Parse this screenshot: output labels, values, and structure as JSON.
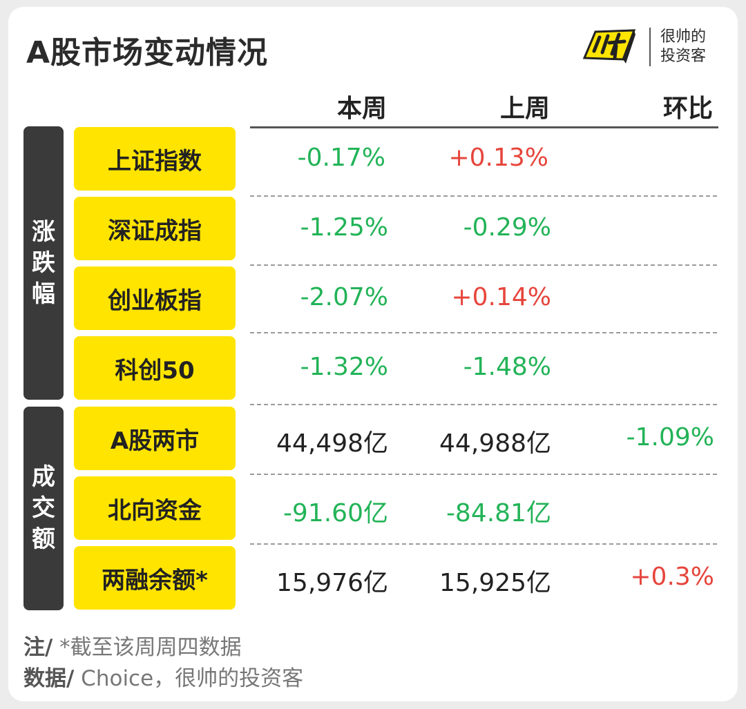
{
  "title": "A股市场变动情况",
  "brand": {
    "logo_text": "帅",
    "line1": "很帅的",
    "line2": "投资客"
  },
  "columns": {
    "this_week": "本周",
    "last_week": "上周",
    "change": "环比"
  },
  "groups": {
    "change_pct": "涨跌幅",
    "volume": "成交额"
  },
  "rows": [
    {
      "label": "上证指数",
      "this_week": "-0.17%",
      "last_week": "+0.13%",
      "change": ""
    },
    {
      "label": "深证成指",
      "this_week": "-1.25%",
      "last_week": "-0.29%",
      "change": ""
    },
    {
      "label": "创业板指",
      "this_week": "-2.07%",
      "last_week": "+0.14%",
      "change": ""
    },
    {
      "label": "科创50",
      "this_week": "-1.32%",
      "last_week": "-1.48%",
      "change": ""
    },
    {
      "label": "A股两市",
      "this_week": "44,498亿",
      "last_week": "44,988亿",
      "change": "-1.09%"
    },
    {
      "label": "北向资金",
      "this_week": "-91.60亿",
      "last_week": "-84.81亿",
      "change": ""
    },
    {
      "label": "两融余额*",
      "this_week": "15,976亿",
      "last_week": "15,925亿",
      "change": "+0.3%"
    }
  ],
  "notes": {
    "note_label": "注/",
    "note_text": " *截至该周周四数据",
    "source_label": "数据/",
    "source_text": " Choice，很帅的投资客"
  },
  "colors": {
    "up": "#e6453c",
    "down": "#22b357",
    "label_bg": "#ffe400",
    "group_bg": "#3a3a3a"
  }
}
